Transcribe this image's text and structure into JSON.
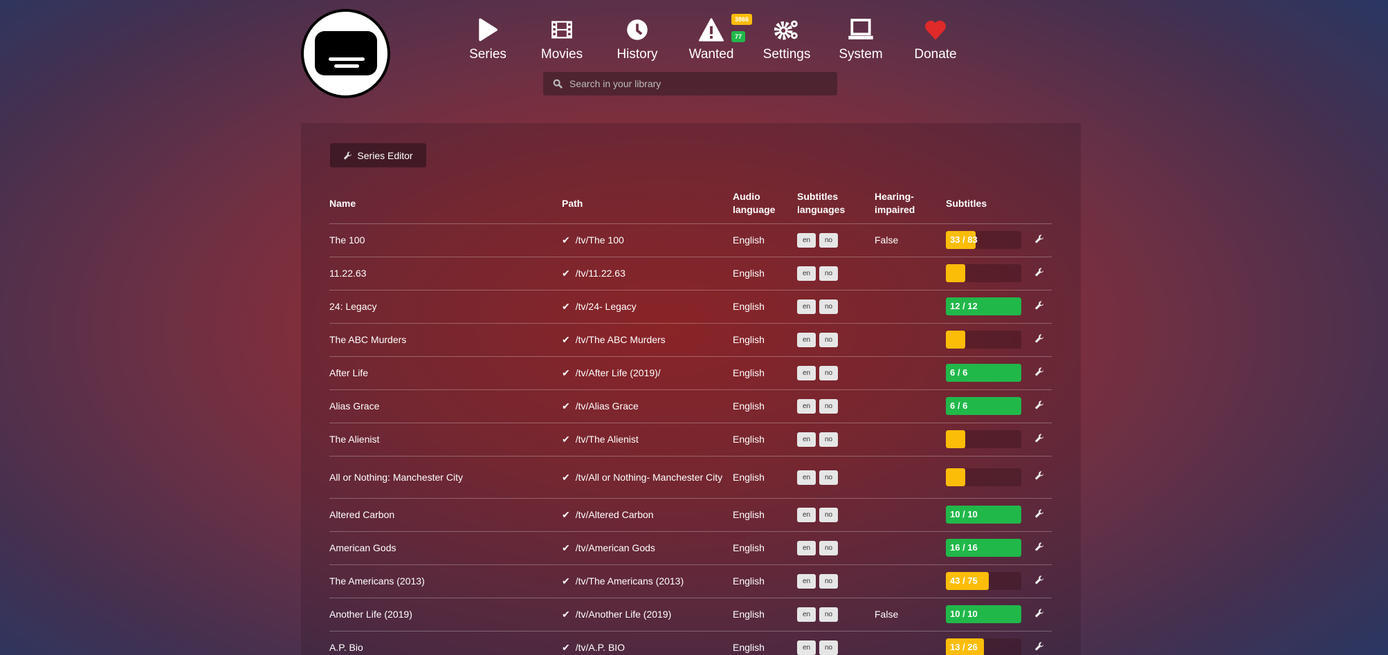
{
  "nav": [
    {
      "label": "Series",
      "icon": "play-icon"
    },
    {
      "label": "Movies",
      "icon": "film-icon"
    },
    {
      "label": "History",
      "icon": "clock-icon"
    },
    {
      "label": "Wanted",
      "icon": "warning-icon",
      "badges": [
        "3866",
        "77"
      ]
    },
    {
      "label": "Settings",
      "icon": "gears-icon"
    },
    {
      "label": "System",
      "icon": "laptop-icon"
    },
    {
      "label": "Donate",
      "icon": "heart-icon"
    }
  ],
  "search": {
    "placeholder": "Search in your library"
  },
  "toolbar": {
    "series_editor": "Series Editor"
  },
  "colors": {
    "complete": "#21b84a",
    "partial": "#fbbd08",
    "donate": "#e02a2a"
  },
  "table": {
    "headers": [
      "Name",
      "Path",
      "Audio language",
      "Subtitles languages",
      "Hearing-impaired",
      "Subtitles"
    ],
    "rows": [
      {
        "name": "The 100",
        "path": "/tv/The 100",
        "audio": "English",
        "subs": [
          "en",
          "no"
        ],
        "hi": "False",
        "progress": "33 / 83",
        "fraction": 0.398
      },
      {
        "name": "11.22.63",
        "path": "/tv/11.22.63",
        "audio": "English",
        "subs": [
          "en",
          "no"
        ],
        "hi": "",
        "progress": "",
        "fraction": 0
      },
      {
        "name": "24: Legacy",
        "path": "/tv/24- Legacy",
        "audio": "English",
        "subs": [
          "en",
          "no"
        ],
        "hi": "",
        "progress": "12 / 12",
        "fraction": 1
      },
      {
        "name": "The ABC Murders",
        "path": "/tv/The ABC Murders",
        "audio": "English",
        "subs": [
          "en",
          "no"
        ],
        "hi": "",
        "progress": "",
        "fraction": 0
      },
      {
        "name": "After Life",
        "path": "/tv/After Life (2019)/",
        "audio": "English",
        "subs": [
          "en",
          "no"
        ],
        "hi": "",
        "progress": "6 / 6",
        "fraction": 1
      },
      {
        "name": "Alias Grace",
        "path": "/tv/Alias Grace",
        "audio": "English",
        "subs": [
          "en",
          "no"
        ],
        "hi": "",
        "progress": "6 / 6",
        "fraction": 1
      },
      {
        "name": "The Alienist",
        "path": "/tv/The Alienist",
        "audio": "English",
        "subs": [
          "en",
          "no"
        ],
        "hi": "",
        "progress": "",
        "fraction": 0
      },
      {
        "name": "All or Nothing: Manchester City",
        "path": "/tv/All or Nothing- Manchester City",
        "audio": "English",
        "subs": [
          "en",
          "no"
        ],
        "hi": "",
        "progress": "",
        "fraction": 0
      },
      {
        "name": "Altered Carbon",
        "path": "/tv/Altered Carbon",
        "audio": "English",
        "subs": [
          "en",
          "no"
        ],
        "hi": "",
        "progress": "10 / 10",
        "fraction": 1
      },
      {
        "name": "American Gods",
        "path": "/tv/American Gods",
        "audio": "English",
        "subs": [
          "en",
          "no"
        ],
        "hi": "",
        "progress": "16 / 16",
        "fraction": 1
      },
      {
        "name": "The Americans (2013)",
        "path": "/tv/The Americans (2013)",
        "audio": "English",
        "subs": [
          "en",
          "no"
        ],
        "hi": "",
        "progress": "43 / 75",
        "fraction": 0.573
      },
      {
        "name": "Another Life (2019)",
        "path": "/tv/Another Life (2019)",
        "audio": "English",
        "subs": [
          "en",
          "no"
        ],
        "hi": "False",
        "progress": "10 / 10",
        "fraction": 1
      },
      {
        "name": "A.P. Bio",
        "path": "/tv/A.P. BIO",
        "audio": "English",
        "subs": [
          "en",
          "no"
        ],
        "hi": "",
        "progress": "13 / 26",
        "fraction": 0.5
      }
    ]
  }
}
